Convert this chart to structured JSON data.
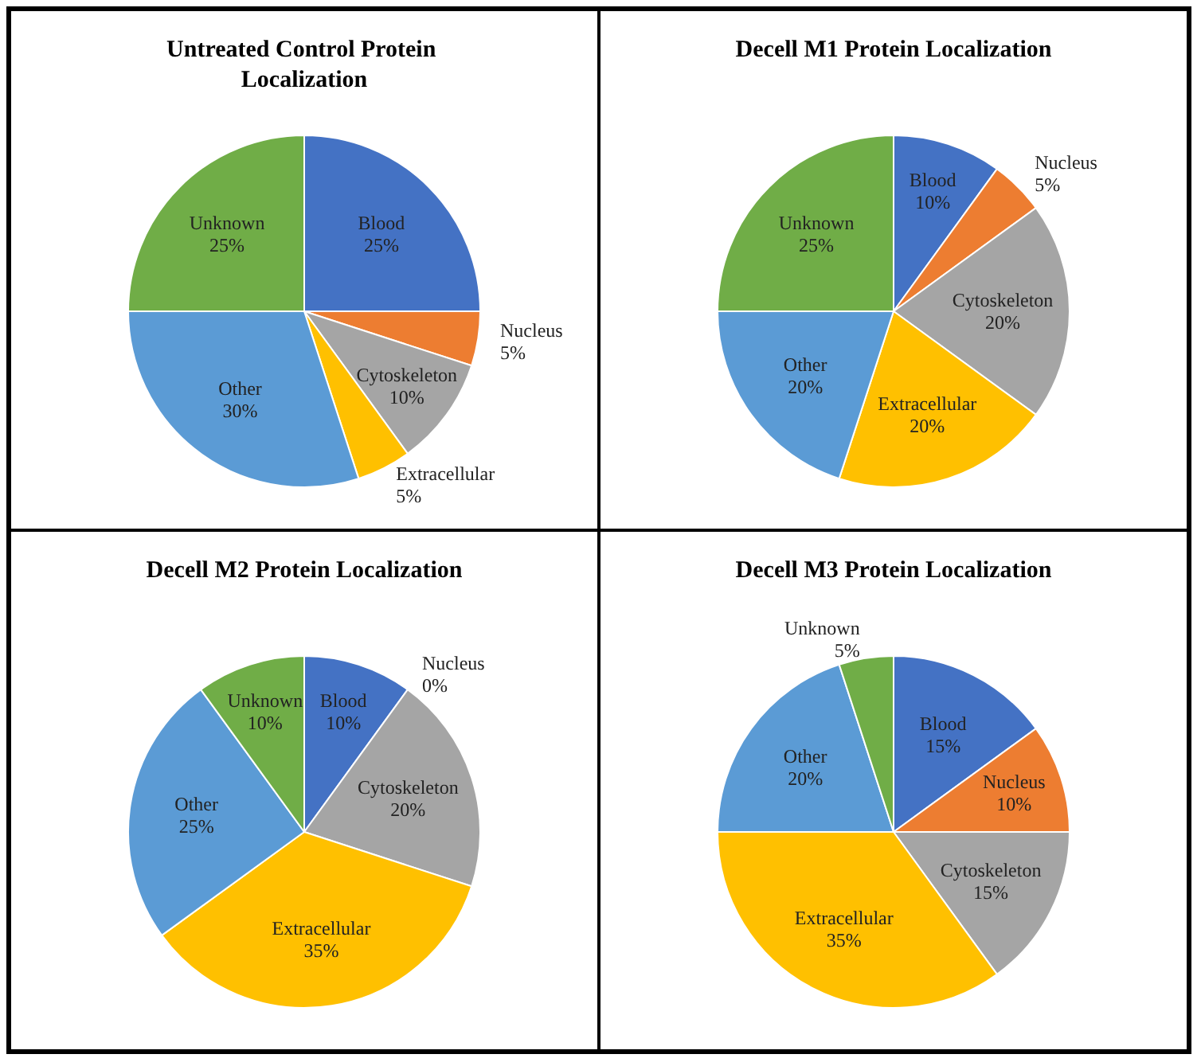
{
  "chart_data": [
    {
      "type": "pie",
      "title": "Untreated Control Protein Localization",
      "categories": [
        "Blood",
        "Nucleus",
        "Cytoskeleton",
        "Extracellular",
        "Other",
        "Unknown"
      ],
      "values": [
        25,
        5,
        10,
        5,
        30,
        25
      ],
      "value_labels": [
        "25%",
        "5%",
        "10%",
        "5%",
        "30%",
        "25%"
      ],
      "colors": [
        "#4472c4",
        "#ed7d31",
        "#a5a5a5",
        "#ffc000",
        "#5b9bd5",
        "#70ad47"
      ],
      "legend": false
    },
    {
      "type": "pie",
      "title": "Decell M1 Protein Localization",
      "categories": [
        "Blood",
        "Nucleus",
        "Cytoskeleton",
        "Extracellular",
        "Other",
        "Unknown"
      ],
      "values": [
        10,
        5,
        20,
        20,
        20,
        25
      ],
      "value_labels": [
        "10%",
        "5%",
        "20%",
        "20%",
        "20%",
        "25%"
      ],
      "colors": [
        "#4472c4",
        "#ed7d31",
        "#a5a5a5",
        "#ffc000",
        "#5b9bd5",
        "#70ad47"
      ],
      "legend": false
    },
    {
      "type": "pie",
      "title": "Decell M2 Protein Localization",
      "categories": [
        "Blood",
        "Nucleus",
        "Cytoskeleton",
        "Extracellular",
        "Other",
        "Unknown"
      ],
      "values": [
        10,
        0,
        20,
        35,
        25,
        10
      ],
      "value_labels": [
        "10%",
        "0%",
        "20%",
        "35%",
        "25%",
        "10%"
      ],
      "colors": [
        "#4472c4",
        "#ed7d31",
        "#a5a5a5",
        "#ffc000",
        "#5b9bd5",
        "#70ad47"
      ],
      "legend": false
    },
    {
      "type": "pie",
      "title": "Decell M3 Protein Localization",
      "categories": [
        "Blood",
        "Nucleus",
        "Cytoskeleton",
        "Extracellular",
        "Other",
        "Unknown"
      ],
      "values": [
        15,
        10,
        15,
        35,
        20,
        5
      ],
      "value_labels": [
        "15%",
        "10%",
        "15%",
        "35%",
        "20%",
        "5%"
      ],
      "colors": [
        "#4472c4",
        "#ed7d31",
        "#a5a5a5",
        "#ffc000",
        "#5b9bd5",
        "#70ad47"
      ],
      "legend": false
    }
  ]
}
